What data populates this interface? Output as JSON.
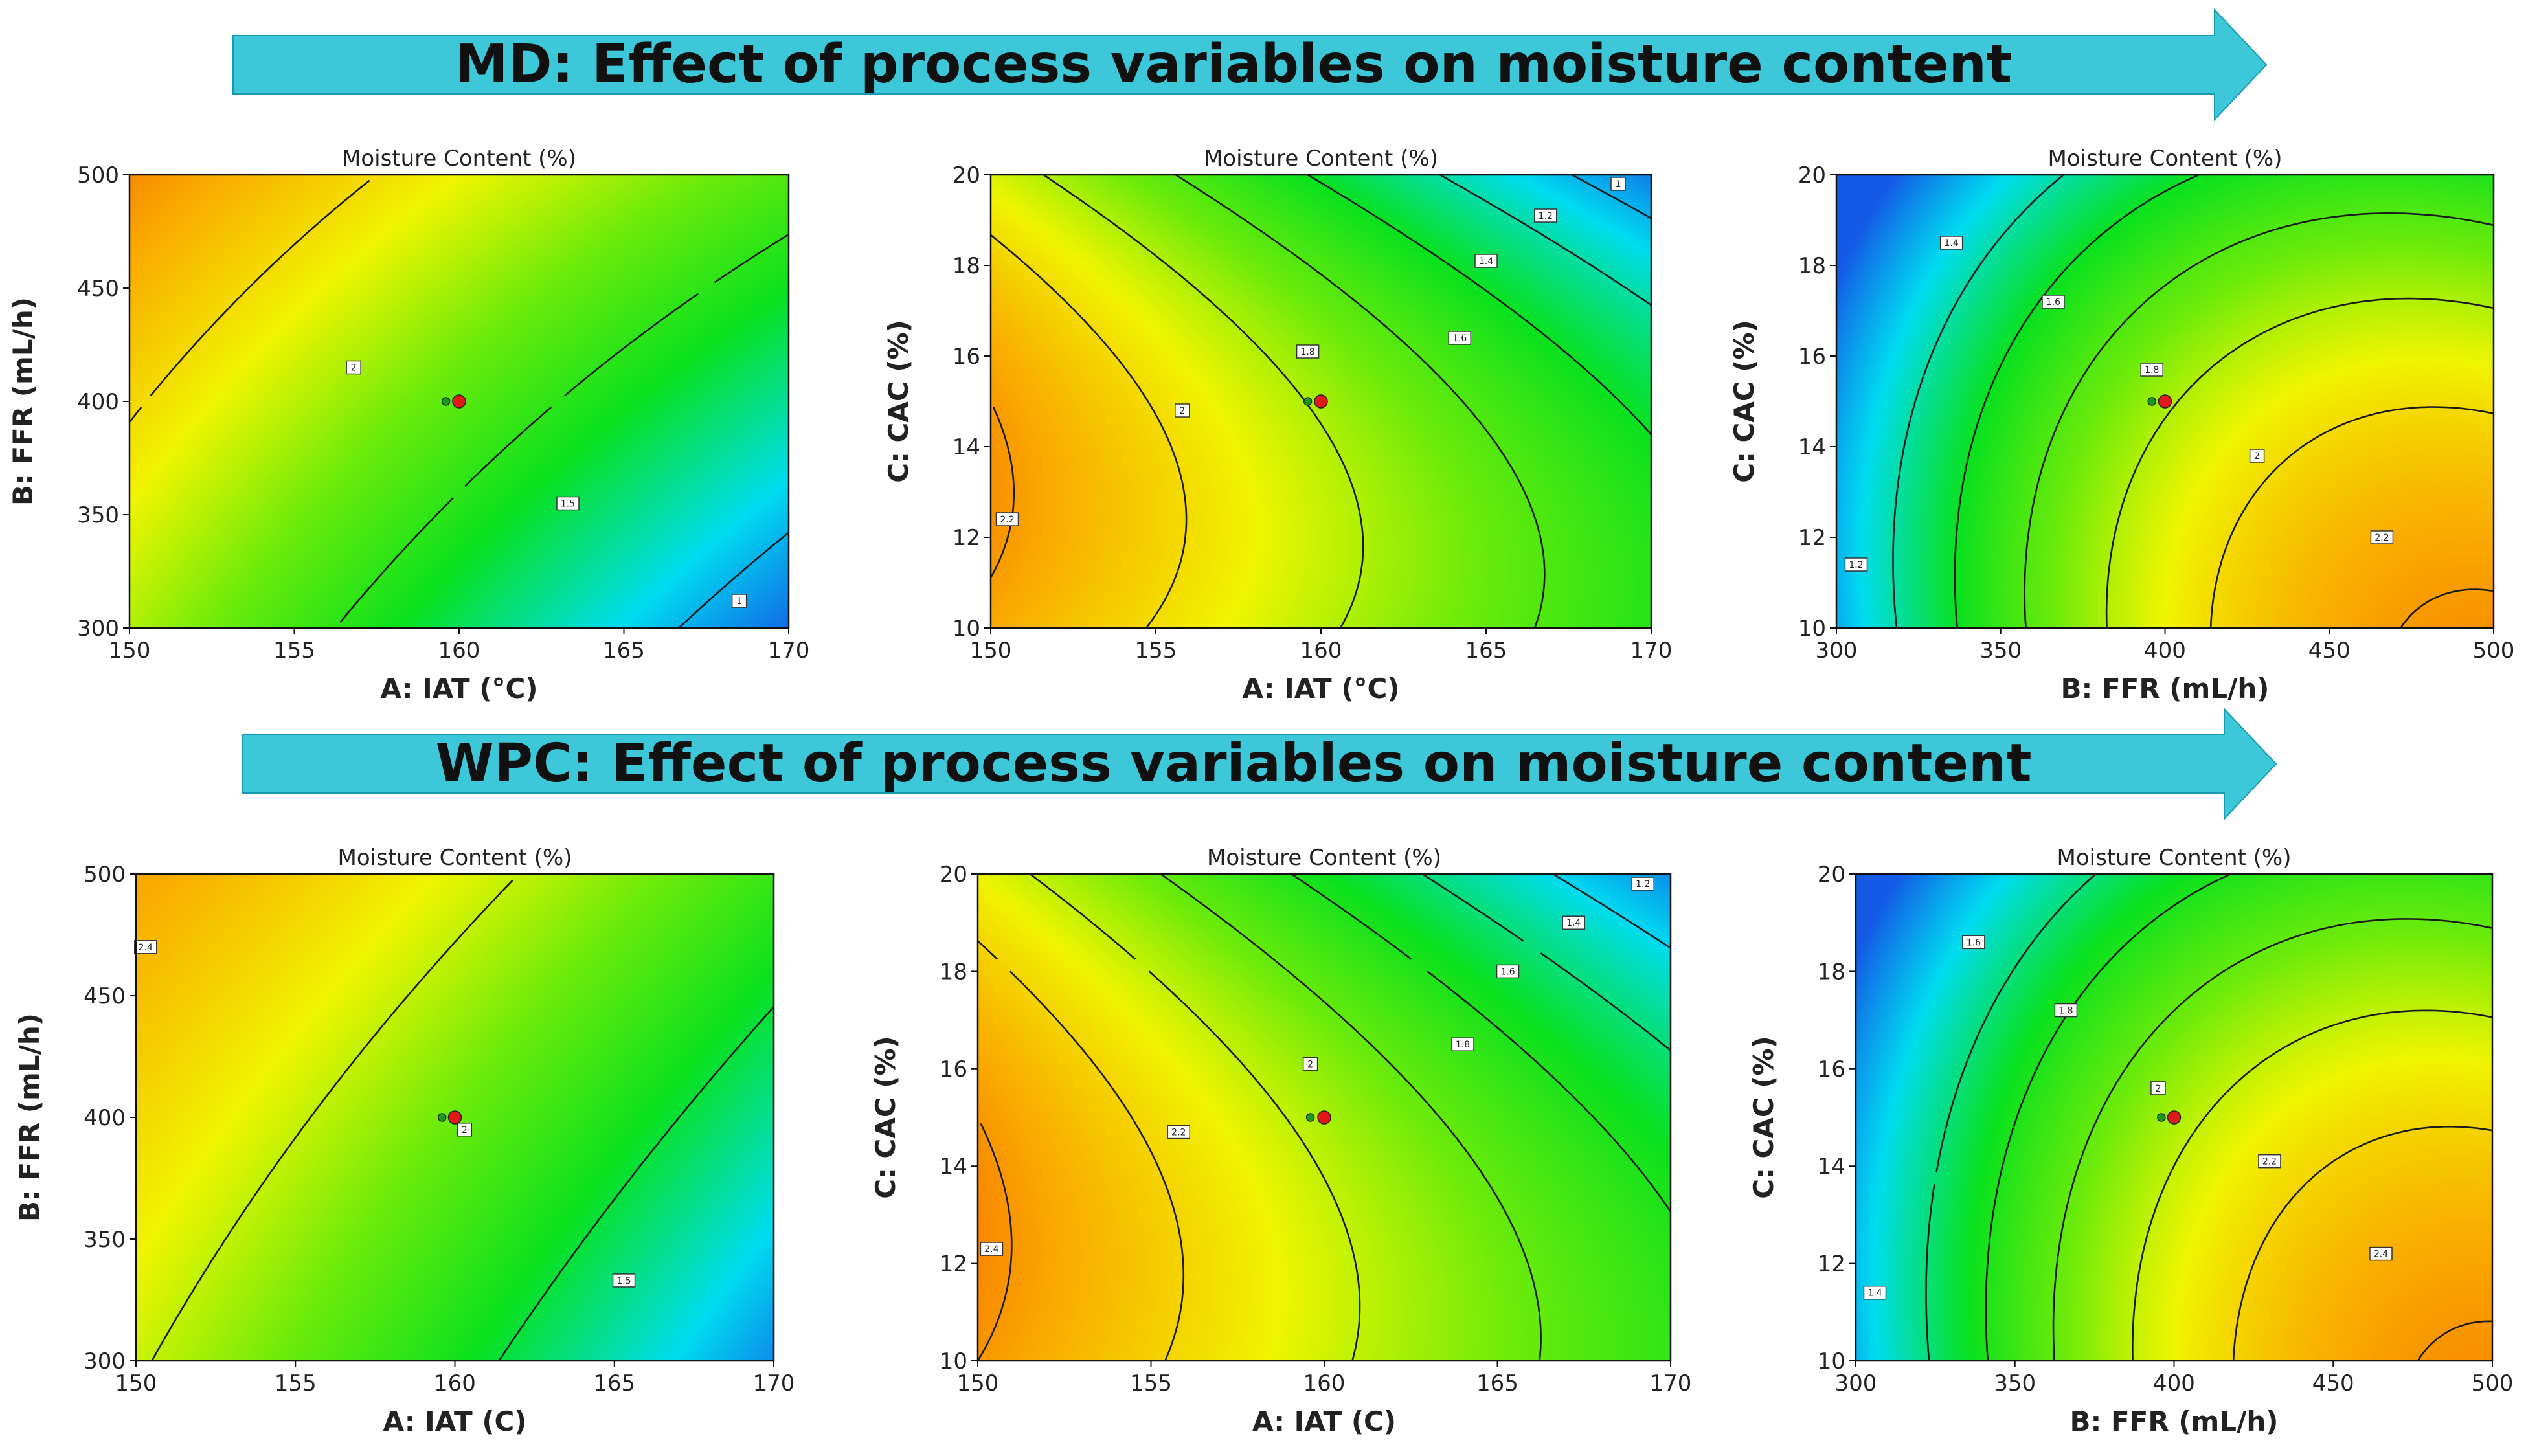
{
  "banners": [
    {
      "text": "MD: Effect of process variables on moisture content",
      "color": "#3cc8d8"
    },
    {
      "text": "WPC: Effect of process variables on moisture content",
      "color": "#3cc8d8"
    }
  ],
  "colors": {
    "contour_line": "#1a1a1a",
    "design_point_red": "#e01818",
    "design_point_green": "#1a9a1a",
    "frame": "#111111"
  },
  "chart_data": [
    {
      "type": "heatmap",
      "title": "Moisture Content (%)",
      "xlabel": "A: IAT (°C)",
      "ylabel": "B: FFR (mL/h)",
      "xlim": [
        150,
        170
      ],
      "ylim": [
        300,
        500
      ],
      "xticks": [
        "150",
        "155",
        "160",
        "165",
        "170"
      ],
      "yticks": [
        "300",
        "350",
        "400",
        "450",
        "500"
      ],
      "model": {
        "c": 1.62,
        "ax": -0.4,
        "ay": 0.3,
        "bx": 0,
        "by": 0,
        "cxy": 0.08,
        "vmin": 0.8,
        "vmax": 2.4
      },
      "contours": [
        {
          "level": 2,
          "label": "2",
          "label_at": [
            156.8,
            415
          ]
        },
        {
          "level": 1.5,
          "label": "1.5",
          "label_at": [
            163.3,
            355
          ]
        },
        {
          "level": 1,
          "label": "1",
          "label_at": [
            168.5,
            312
          ]
        }
      ],
      "design_points": [
        [
          159.6,
          400
        ],
        [
          160,
          400
        ]
      ]
    },
    {
      "type": "heatmap",
      "title": "Moisture Content (%)",
      "xlabel": "A: IAT (°C)",
      "ylabel": "C: CAC (%)",
      "xlim": [
        150,
        170
      ],
      "ylim": [
        10,
        20
      ],
      "xticks": [
        "150",
        "155",
        "160",
        "165",
        "170"
      ],
      "yticks": [
        "10",
        "12",
        "14",
        "16",
        "18",
        "20"
      ],
      "model": {
        "c": 1.78,
        "ax": -0.42,
        "ay": -0.22,
        "bx": 0,
        "by": -0.18,
        "cxy": -0.08,
        "vmin": 0.8,
        "vmax": 2.4
      },
      "contours": [
        {
          "level": 2.2,
          "label": "2.2",
          "label_at": [
            150.5,
            12.4
          ]
        },
        {
          "level": 2,
          "label": "2",
          "label_at": [
            155.8,
            14.8
          ]
        },
        {
          "level": 1.8,
          "label": "1.8",
          "label_at": [
            159.6,
            16.1
          ]
        },
        {
          "level": 1.6,
          "label": "1.6",
          "label_at": [
            164.2,
            16.4
          ]
        },
        {
          "level": 1.4,
          "label": "1.4",
          "label_at": [
            165,
            18.1
          ]
        },
        {
          "level": 1.2,
          "label": "1.2",
          "label_at": [
            166.8,
            19.1
          ]
        },
        {
          "level": 1,
          "label": "1",
          "label_at": [
            169,
            19.8
          ]
        }
      ],
      "design_points": [
        [
          159.6,
          15
        ],
        [
          160,
          15
        ]
      ]
    },
    {
      "type": "heatmap",
      "title": "Moisture Content (%)",
      "xlabel": "B: FFR (mL/h)",
      "ylabel": "C: CAC (%)",
      "xlim": [
        300,
        500
      ],
      "ylim": [
        10,
        20
      ],
      "xticks": [
        "300",
        "350",
        "400",
        "450",
        "500"
      ],
      "yticks": [
        "10",
        "12",
        "14",
        "16",
        "18",
        "20"
      ],
      "model": {
        "c": 1.78,
        "ax": 0.52,
        "ay": -0.28,
        "bx": -0.32,
        "by": -0.14,
        "cxy": -0.1,
        "vmin": 0.8,
        "vmax": 2.4
      },
      "contours": [
        {
          "level": 2.2,
          "label": "2.2",
          "label_at": [
            466,
            12.0
          ]
        },
        {
          "level": 2,
          "label": "2",
          "label_at": [
            428,
            13.8
          ]
        },
        {
          "level": 1.8,
          "label": "1.8",
          "label_at": [
            396,
            15.7
          ]
        },
        {
          "level": 1.6,
          "label": "1.6",
          "label_at": [
            366,
            17.2
          ]
        },
        {
          "level": 1.4,
          "label": "1.4",
          "label_at": [
            335,
            18.5
          ]
        },
        {
          "level": 1.2,
          "label": "1.2",
          "label_at": [
            306,
            11.4
          ]
        }
      ],
      "design_points": [
        [
          396,
          15
        ],
        [
          400,
          15
        ]
      ]
    },
    {
      "type": "heatmap",
      "title": "Moisture Content (%)",
      "xlabel": "A: IAT (C)",
      "ylabel": "B: FFR (mL/h)",
      "xlim": [
        150,
        170
      ],
      "ylim": [
        300,
        500
      ],
      "xticks": [
        "150",
        "155",
        "160",
        "165",
        "170"
      ],
      "yticks": [
        "300",
        "350",
        "400",
        "450",
        "500"
      ],
      "model": {
        "c": 1.82,
        "ax": -0.42,
        "ay": 0.25,
        "bx": -0.05,
        "by": 0,
        "cxy": 0.08,
        "vmin": 0.9,
        "vmax": 2.6
      },
      "contours": [
        {
          "level": 2.4,
          "label": "2.4",
          "label_at": [
            150.3,
            470
          ]
        },
        {
          "level": 2,
          "label": "2",
          "label_at": [
            160.3,
            395
          ]
        },
        {
          "level": 1.5,
          "label": "1.5",
          "label_at": [
            165.3,
            333
          ]
        }
      ],
      "design_points": [
        [
          159.6,
          400
        ],
        [
          160,
          400
        ]
      ]
    },
    {
      "type": "heatmap",
      "title": "Moisture Content (%)",
      "xlabel": "A: IAT (C)",
      "ylabel": "C: CAC (%)",
      "xlim": [
        150,
        170
      ],
      "ylim": [
        10,
        20
      ],
      "xticks": [
        "150",
        "155",
        "160",
        "165",
        "170"
      ],
      "yticks": [
        "10",
        "12",
        "14",
        "16",
        "18",
        "20"
      ],
      "model": {
        "c": 1.95,
        "ax": -0.45,
        "ay": -0.24,
        "bx": 0,
        "by": -0.16,
        "cxy": -0.08,
        "vmin": 0.9,
        "vmax": 2.6
      },
      "contours": [
        {
          "level": 2.4,
          "label": "2.4",
          "label_at": [
            150.4,
            12.3
          ]
        },
        {
          "level": 2.2,
          "label": "2.2",
          "label_at": [
            155.8,
            14.7
          ]
        },
        {
          "level": 2,
          "label": "2",
          "label_at": [
            159.6,
            16.1
          ]
        },
        {
          "level": 1.8,
          "label": "1.8",
          "label_at": [
            164,
            16.5
          ]
        },
        {
          "level": 1.6,
          "label": "1.6",
          "label_at": [
            165.3,
            18
          ]
        },
        {
          "level": 1.4,
          "label": "1.4",
          "label_at": [
            167.2,
            19
          ]
        },
        {
          "level": 1.2,
          "label": "1.2",
          "label_at": [
            169.2,
            19.8
          ]
        }
      ],
      "design_points": [
        [
          159.6,
          15
        ],
        [
          160,
          15
        ]
      ]
    },
    {
      "type": "heatmap",
      "title": "Moisture Content (%)",
      "xlabel": "B: FFR (mL/h)",
      "ylabel": "C: CAC (%)",
      "xlim": [
        300,
        500
      ],
      "ylim": [
        10,
        20
      ],
      "xticks": [
        "300",
        "350",
        "400",
        "450",
        "500"
      ],
      "yticks": [
        "10",
        "12",
        "14",
        "16",
        "18",
        "20"
      ],
      "model": {
        "c": 1.95,
        "ax": 0.55,
        "ay": -0.28,
        "bx": -0.32,
        "by": -0.14,
        "cxy": -0.1,
        "vmin": 0.9,
        "vmax": 2.6
      },
      "contours": [
        {
          "level": 2.4,
          "label": "2.4",
          "label_at": [
            465,
            12.2
          ]
        },
        {
          "level": 2.2,
          "label": "2.2",
          "label_at": [
            430,
            14.1
          ]
        },
        {
          "level": 2,
          "label": "2",
          "label_at": [
            395,
            15.6
          ]
        },
        {
          "level": 1.8,
          "label": "1.8",
          "label_at": [
            366,
            17.2
          ]
        },
        {
          "level": 1.6,
          "label": "1.6",
          "label_at": [
            337,
            18.6
          ]
        },
        {
          "level": 1.4,
          "label": "1.4",
          "label_at": [
            306,
            11.4
          ]
        }
      ],
      "design_points": [
        [
          396,
          15
        ],
        [
          400,
          15
        ]
      ]
    }
  ]
}
